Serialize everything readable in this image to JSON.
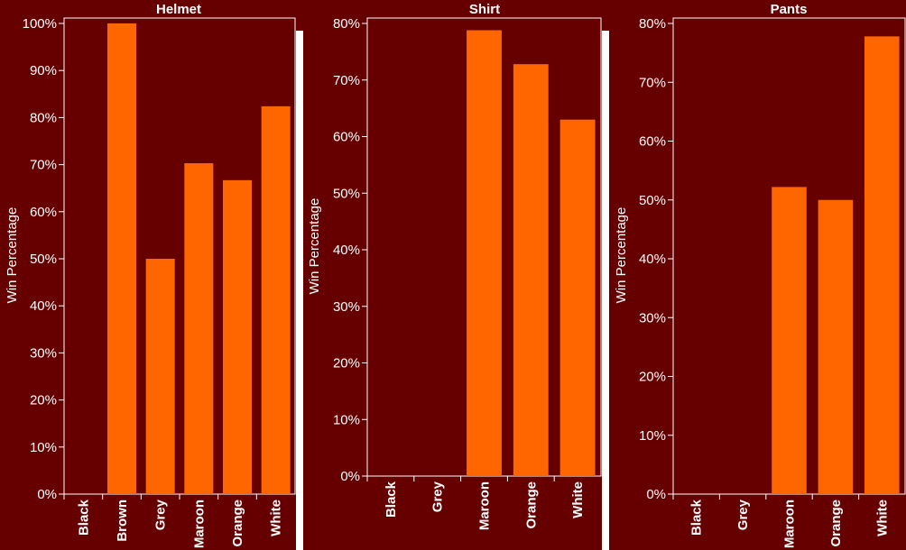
{
  "colors": {
    "background": "#660000",
    "bar": "#ff6600",
    "text": "#ffffff"
  },
  "chart_data": [
    {
      "type": "bar",
      "title": "Helmet",
      "ylabel": "Win Percentage",
      "categories": [
        "Black",
        "Brown",
        "Grey",
        "Maroon",
        "Orange",
        "White"
      ],
      "values": [
        0,
        100,
        50,
        70.3,
        66.7,
        82.4
      ],
      "ylim": [
        0,
        100
      ],
      "yticks": [
        0,
        10,
        20,
        30,
        40,
        50,
        60,
        70,
        80,
        90,
        100
      ],
      "ytick_labels": [
        "0%",
        "10%",
        "20%",
        "30%",
        "40%",
        "50%",
        "60%",
        "70%",
        "80%",
        "90%",
        "100%"
      ],
      "grid": false
    },
    {
      "type": "bar",
      "title": "Shirt",
      "ylabel": "Win Percentage",
      "categories": [
        "Black",
        "Grey",
        "Maroon",
        "Orange",
        "White"
      ],
      "values": [
        0,
        0,
        78.8,
        72.8,
        63
      ],
      "ylim": [
        0,
        80
      ],
      "yticks": [
        0,
        10,
        20,
        30,
        40,
        50,
        60,
        70,
        80
      ],
      "ytick_labels": [
        "0%",
        "10%",
        "20%",
        "30%",
        "40%",
        "50%",
        "60%",
        "70%",
        "80%"
      ],
      "grid": false
    },
    {
      "type": "bar",
      "title": "Pants",
      "ylabel": "Win Percentage",
      "categories": [
        "Black",
        "Grey",
        "Maroon",
        "Orange",
        "White"
      ],
      "values": [
        0,
        0,
        52.2,
        50,
        77.8
      ],
      "ylim": [
        0,
        80
      ],
      "yticks": [
        0,
        10,
        20,
        30,
        40,
        50,
        60,
        70,
        80
      ],
      "ytick_labels": [
        "0%",
        "10%",
        "20%",
        "30%",
        "40%",
        "50%",
        "60%",
        "70%",
        "80%"
      ],
      "grid": false
    }
  ]
}
